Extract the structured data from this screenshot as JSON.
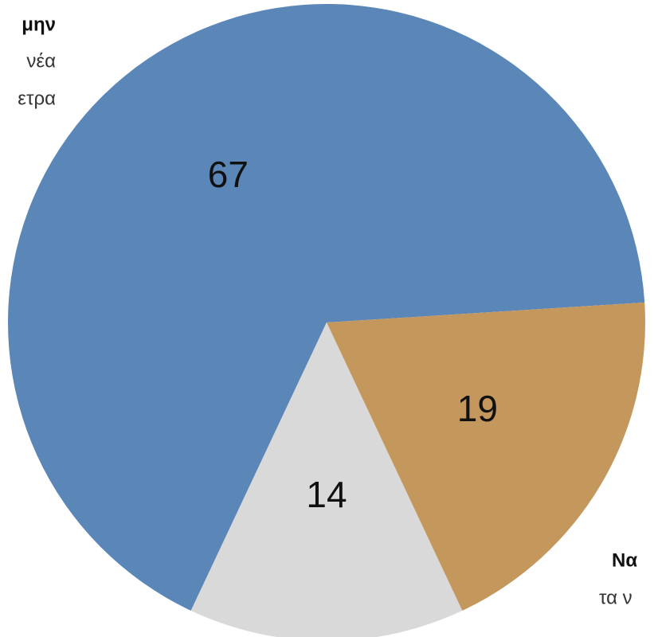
{
  "chart_data": {
    "type": "pie",
    "values": [
      67,
      19,
      14
    ],
    "colors": [
      "#5b86b8",
      "#c4975c",
      "#d9d9d9"
    ],
    "annotations": [
      "μην",
      "νέα",
      "ετρα",
      "Να",
      "τα ν"
    ]
  }
}
